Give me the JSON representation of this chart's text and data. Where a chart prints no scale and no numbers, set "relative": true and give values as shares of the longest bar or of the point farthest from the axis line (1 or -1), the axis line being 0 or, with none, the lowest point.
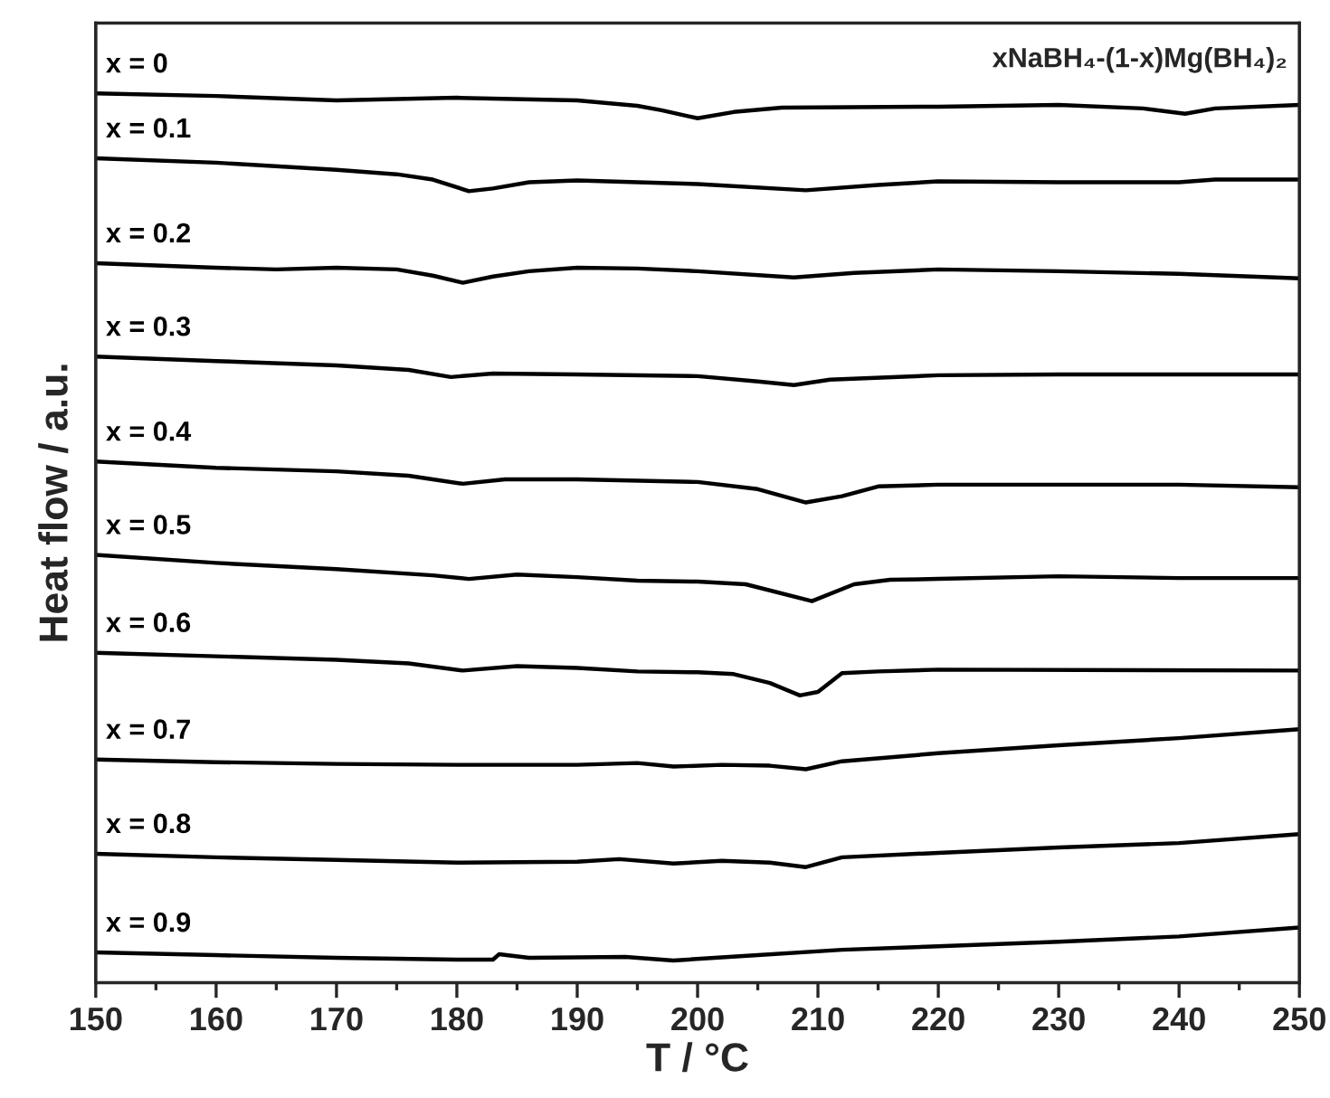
{
  "chart_data": {
    "type": "line",
    "relative": true,
    "xlabel": "T / °C",
    "ylabel": "Heat flow / a.u.",
    "annotations": [
      "xNaBH₄-(1-x)Mg(BH₄)₂"
    ],
    "xlim": [
      150,
      250
    ],
    "xticks": [
      150,
      160,
      170,
      180,
      190,
      200,
      210,
      220,
      230,
      240,
      250
    ],
    "line_style": "solid",
    "series": [
      {
        "name": "x = 0",
        "color": "#000000",
        "x": [
          150,
          160,
          170,
          180,
          190,
          195,
          197,
          200,
          203,
          207,
          220,
          230,
          237,
          240.5,
          243,
          250
        ],
        "values": [
          1.0,
          0.997,
          0.992,
          0.995,
          0.992,
          0.986,
          0.981,
          0.972,
          0.979,
          0.984,
          0.985,
          0.987,
          0.983,
          0.977,
          0.983,
          0.987
        ]
      },
      {
        "name": "x = 0.1",
        "color": "#000000",
        "x": [
          150,
          160,
          170,
          175,
          178,
          181,
          183,
          186,
          190,
          200,
          209,
          215,
          220,
          230,
          240,
          243,
          250
        ],
        "values": [
          0.927,
          0.922,
          0.914,
          0.909,
          0.903,
          0.89,
          0.893,
          0.9,
          0.902,
          0.898,
          0.891,
          0.897,
          0.901,
          0.9,
          0.9,
          0.903,
          0.903
        ]
      },
      {
        "name": "x = 0.2",
        "color": "#000000",
        "x": [
          150,
          160,
          165,
          170,
          175,
          178,
          180.5,
          183,
          186,
          190,
          195,
          200,
          208,
          213,
          220,
          230,
          240,
          250
        ],
        "values": [
          0.809,
          0.804,
          0.802,
          0.804,
          0.802,
          0.795,
          0.787,
          0.794,
          0.8,
          0.804,
          0.803,
          0.8,
          0.793,
          0.798,
          0.802,
          0.8,
          0.797,
          0.792
        ]
      },
      {
        "name": "x = 0.3",
        "color": "#000000",
        "x": [
          150,
          160,
          170,
          176,
          179.5,
          183,
          190,
          200,
          205,
          208,
          211,
          220,
          230,
          250
        ],
        "values": [
          0.704,
          0.699,
          0.694,
          0.689,
          0.681,
          0.685,
          0.684,
          0.682,
          0.676,
          0.672,
          0.678,
          0.683,
          0.684,
          0.684
        ]
      },
      {
        "name": "x = 0.4",
        "color": "#000000",
        "x": [
          150,
          160,
          170,
          176,
          180.5,
          184,
          190,
          200,
          205,
          209,
          212,
          215,
          220,
          230,
          240,
          250
        ],
        "values": [
          0.586,
          0.579,
          0.575,
          0.57,
          0.561,
          0.566,
          0.566,
          0.563,
          0.555,
          0.54,
          0.547,
          0.558,
          0.56,
          0.56,
          0.56,
          0.557
        ]
      },
      {
        "name": "x = 0.5",
        "color": "#000000",
        "x": [
          150,
          160,
          170,
          178,
          181,
          185,
          190,
          195,
          200,
          204,
          209.5,
          213,
          216,
          220,
          230,
          240,
          250
        ],
        "values": [
          0.481,
          0.472,
          0.465,
          0.458,
          0.454,
          0.459,
          0.456,
          0.452,
          0.451,
          0.448,
          0.429,
          0.448,
          0.453,
          0.454,
          0.457,
          0.455,
          0.455
        ]
      },
      {
        "name": "x = 0.6",
        "color": "#000000",
        "x": [
          150,
          160,
          170,
          176,
          180.5,
          185,
          190,
          195,
          200,
          203,
          206,
          208.5,
          210,
          212,
          215,
          220,
          250
        ],
        "values": [
          0.371,
          0.367,
          0.363,
          0.359,
          0.351,
          0.356,
          0.354,
          0.35,
          0.349,
          0.347,
          0.337,
          0.323,
          0.327,
          0.348,
          0.35,
          0.352,
          0.351
        ]
      },
      {
        "name": "x = 0.7",
        "color": "#000000",
        "x": [
          150,
          160,
          170,
          180,
          190,
          195,
          198,
          202,
          206,
          209,
          212,
          220,
          230,
          240,
          250
        ],
        "values": [
          0.251,
          0.248,
          0.246,
          0.245,
          0.245,
          0.247,
          0.243,
          0.245,
          0.244,
          0.24,
          0.249,
          0.258,
          0.267,
          0.275,
          0.285
        ]
      },
      {
        "name": "x = 0.8",
        "color": "#000000",
        "x": [
          150,
          160,
          170,
          180,
          190,
          193.5,
          198,
          202,
          206,
          209,
          212,
          220,
          230,
          240,
          250
        ],
        "values": [
          0.145,
          0.141,
          0.138,
          0.135,
          0.136,
          0.139,
          0.134,
          0.137,
          0.135,
          0.13,
          0.141,
          0.146,
          0.152,
          0.157,
          0.167
        ]
      },
      {
        "name": "x = 0.9",
        "color": "#000000",
        "x": [
          150,
          160,
          170,
          180,
          183,
          183.5,
          186,
          194,
          198,
          205,
          212,
          220,
          230,
          240,
          250
        ],
        "values": [
          0.034,
          0.031,
          0.028,
          0.026,
          0.026,
          0.032,
          0.028,
          0.029,
          0.025,
          0.031,
          0.037,
          0.041,
          0.046,
          0.052,
          0.062
        ]
      }
    ]
  }
}
